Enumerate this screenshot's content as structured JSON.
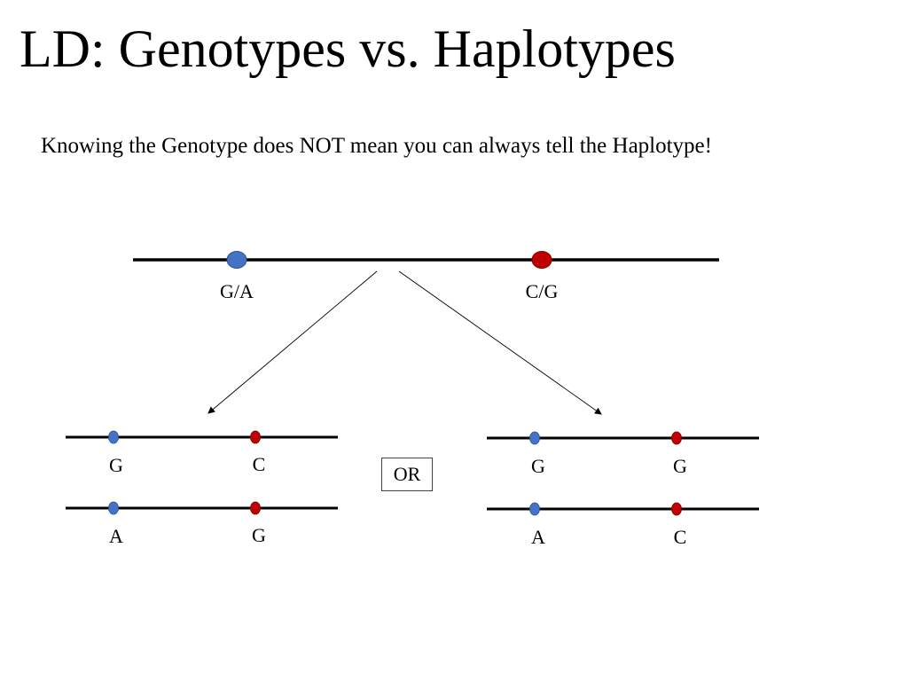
{
  "slide": {
    "title": "LD: Genotypes vs. Haplotypes",
    "subtitle": "Knowing the Genotype does NOT mean you can always tell the Haplotype!"
  },
  "genotype": {
    "locus1_label": "G/A",
    "locus2_label": "C/G",
    "locus1_color": "#4472C4",
    "locus2_color": "#C00000"
  },
  "separator": "OR",
  "option_left": {
    "chrom1": {
      "allele1": "G",
      "allele2": "C"
    },
    "chrom2": {
      "allele1": "A",
      "allele2": "G"
    }
  },
  "option_right": {
    "chrom1": {
      "allele1": "G",
      "allele2": "G"
    },
    "chrom2": {
      "allele1": "A",
      "allele2": "C"
    }
  }
}
